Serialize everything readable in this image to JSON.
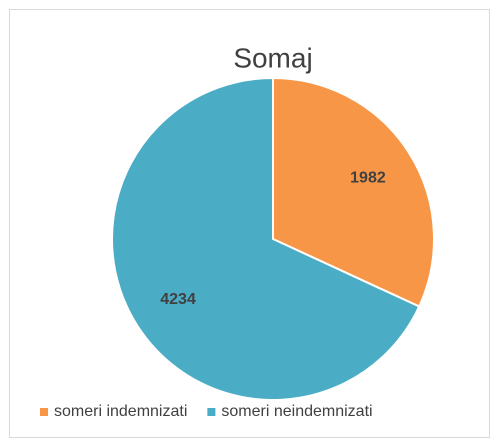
{
  "chart_data": {
    "type": "pie",
    "title": "Somaj",
    "categories": [
      "someri indemnizati",
      "someri neindemnizati"
    ],
    "values": [
      1982,
      4234
    ],
    "colors": [
      "#f79646",
      "#4bacc6"
    ],
    "legend": "bottom"
  }
}
